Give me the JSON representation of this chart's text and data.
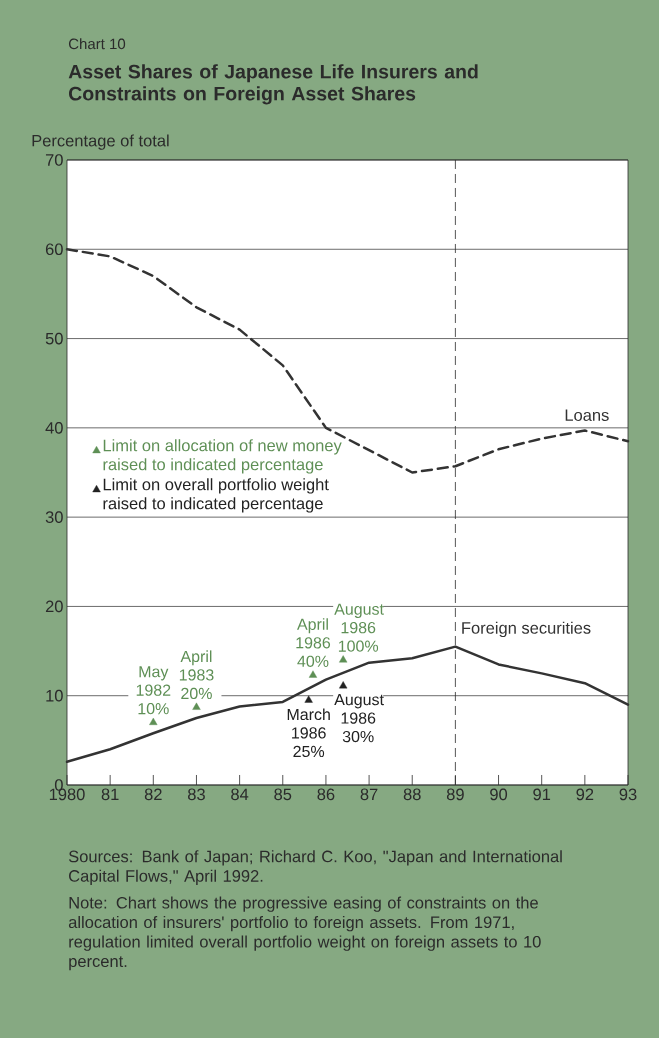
{
  "chart_data": {
    "type": "line",
    "subtitle": "Chart 10",
    "title": "Asset Shares of Japanese Life Insurers and Constraints on Foreign Asset Shares",
    "ylabel": "Percentage of total",
    "x": [
      1980,
      1981,
      1982,
      1983,
      1984,
      1985,
      1986,
      1987,
      1988,
      1989,
      1990,
      1991,
      1992,
      1993
    ],
    "series": [
      {
        "name": "Loans",
        "color": "#333333",
        "line_style": "dashed",
        "values": [
          60,
          59.2,
          57,
          53.5,
          51,
          47,
          40,
          37.5,
          35,
          35.7,
          37.6,
          38.8,
          39.7,
          38.5
        ]
      },
      {
        "name": "Foreign securities",
        "color": "#333333",
        "line_style": "solid",
        "values": [
          2.6,
          4.0,
          5.8,
          7.5,
          8.8,
          9.3,
          11.8,
          13.7,
          14.2,
          15.5,
          13.5,
          12.5,
          11.4,
          9.0
        ]
      },
      {
        "name": "Limit on allocation of new money raised to indicated percentage",
        "type": "scatter",
        "color": "#5e8f55",
        "marker": "triangle",
        "x": [
          1982,
          1983,
          1985.7,
          1986.4
        ],
        "values": [
          7.0,
          8.7,
          12.3,
          14.0
        ]
      },
      {
        "name": "Limit on overall portfolio weight raised to indicated percentage",
        "type": "scatter",
        "color": "#222222",
        "marker": "triangle",
        "x": [
          1985.6,
          1986.4
        ],
        "values": [
          9.5,
          11.1
        ]
      }
    ],
    "xlim": [
      1980,
      1993
    ],
    "ylim": [
      0,
      70
    ],
    "xticks": [
      1980,
      {
        "value": 1981,
        "label": "81"
      },
      {
        "value": 1982,
        "label": "82"
      },
      {
        "value": 1983,
        "label": "83"
      },
      {
        "value": 1984,
        "label": "84"
      },
      {
        "value": 1985,
        "label": "85"
      },
      {
        "value": 1986,
        "label": "86"
      },
      {
        "value": 1987,
        "label": "87"
      },
      {
        "value": 1988,
        "label": "88"
      },
      {
        "value": 1989,
        "label": "89"
      },
      {
        "value": 1990,
        "label": "90"
      },
      {
        "value": 1991,
        "label": "91"
      },
      {
        "value": 1992,
        "label": "92"
      },
      {
        "value": 1993,
        "label": "93"
      }
    ],
    "yticks": [
      0,
      10,
      20,
      30,
      40,
      50,
      60,
      70
    ],
    "grid": "y",
    "legend": "left",
    "ref_lines": [
      {
        "axis": "x",
        "value": 1989,
        "line_style": "dashed"
      }
    ],
    "annotations": [
      {
        "text": "May 1982 10%",
        "x": 1982,
        "y": 7.0
      },
      {
        "text": "April 1983 20%",
        "x": 1983,
        "y": 8.7
      },
      {
        "text": "April 1986 40%",
        "x": 1985.7,
        "y": 12.3
      },
      {
        "text": "August 1986 100%",
        "x": 1986.4,
        "y": 14.0
      },
      {
        "text": "March 1986 25%",
        "x": 1985.6,
        "y": 9.5
      },
      {
        "text": "August 1986 30%",
        "x": 1986.4,
        "y": 11.1
      },
      "Sources:  Bank of Japan; Richard C. Koo, \"Japan and International Capital Flows,\" April 1992.",
      "Note:  Chart shows the progressive easing of constraints on the allocation of insurers' portfolio to foreign assets. From 1971, regulation limited overall portfolio weight on foreign assets to 10 percent."
    ]
  }
}
